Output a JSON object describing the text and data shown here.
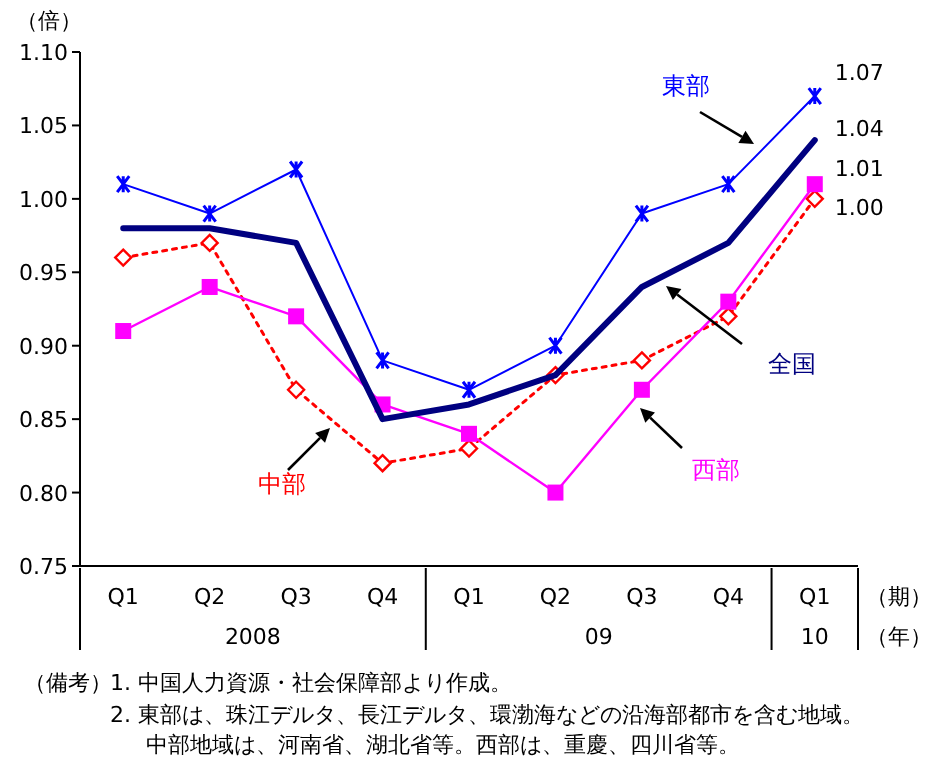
{
  "chart_data": {
    "type": "line",
    "ylabel": "（倍）",
    "xlabel": "（期）",
    "categories": [
      "Q1",
      "Q2",
      "Q3",
      "Q4",
      "Q1",
      "Q2",
      "Q3",
      "Q4",
      "Q1"
    ],
    "ylim": [
      0.75,
      1.1
    ],
    "yticks": [
      {
        "value": 0.75,
        "label": "0.75"
      },
      {
        "value": 0.8,
        "label": "0.80"
      },
      {
        "value": 0.85,
        "label": "0.85"
      },
      {
        "value": 0.9,
        "label": "0.90"
      },
      {
        "value": 0.95,
        "label": "0.95"
      },
      {
        "value": 1.0,
        "label": "1.00"
      },
      {
        "value": 1.05,
        "label": "1.05"
      },
      {
        "value": 1.1,
        "label": "1.10"
      }
    ],
    "grid": false,
    "legend": false,
    "series": [
      {
        "name": "東部",
        "color": "#0000ff",
        "marker": "cross",
        "line_style": "solid",
        "values": [
          1.01,
          0.99,
          1.02,
          0.89,
          0.87,
          0.9,
          0.99,
          1.01,
          1.07
        ],
        "value_labels": [
          null,
          null,
          null,
          null,
          null,
          null,
          null,
          null,
          "1.07"
        ]
      },
      {
        "name": "全国",
        "color": "#000080",
        "marker": "none",
        "line_style": "solid",
        "values": [
          0.98,
          0.98,
          0.97,
          0.85,
          0.86,
          0.88,
          0.94,
          0.97,
          1.04
        ],
        "value_labels": [
          null,
          null,
          null,
          null,
          null,
          null,
          null,
          null,
          "1.04"
        ]
      },
      {
        "name": "西部",
        "color": "#ff00ff",
        "marker": "square",
        "line_style": "solid",
        "values": [
          0.91,
          0.94,
          0.92,
          0.86,
          0.84,
          0.8,
          0.87,
          0.93,
          1.01
        ],
        "value_labels": [
          null,
          null,
          null,
          null,
          null,
          null,
          null,
          null,
          "1.01"
        ]
      },
      {
        "name": "中部",
        "color": "#ff0000",
        "marker": "diamond",
        "line_style": "dotted",
        "values": [
          0.96,
          0.97,
          0.87,
          0.82,
          0.83,
          0.88,
          0.89,
          0.92,
          1.0
        ],
        "value_labels": [
          null,
          null,
          null,
          null,
          null,
          null,
          null,
          null,
          "1.00"
        ]
      }
    ],
    "annotations": [
      "2008",
      "09",
      "10",
      "（年）",
      "（備考）",
      "1. 中国人力資源・社会保障部より作成。",
      "2. 東部は、珠江デルタ、長江デルタ、環渤海などの沿海部都市を含む地域。",
      "中部地域は、河南省、湖北省等。西部は、重慶、四川省等。"
    ]
  }
}
